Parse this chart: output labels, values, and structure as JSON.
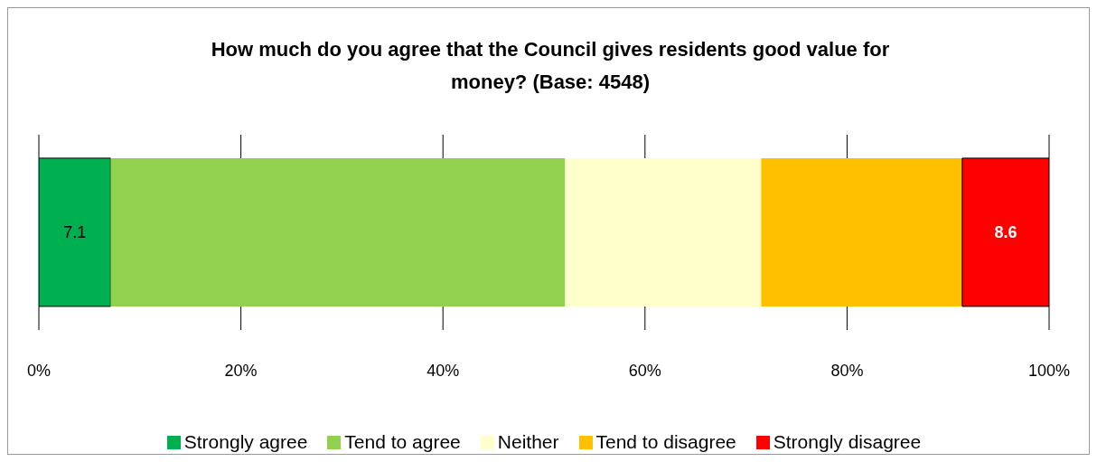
{
  "chart_data": {
    "type": "bar",
    "orientation": "horizontal",
    "stacked": true,
    "title": "How much do you agree that the Council gives residents good value for money? (Base: 4548)",
    "categories": [
      null
    ],
    "series": [
      {
        "name": "Strongly agree",
        "color": "#00b050",
        "values": [
          7.1
        ],
        "value_labels": [
          "7.1"
        ]
      },
      {
        "name": "Tend to agree",
        "color": "#92d050",
        "values": [
          45.0
        ],
        "value_labels": [
          null
        ]
      },
      {
        "name": "Neither",
        "color": "#ffffcc",
        "values": [
          19.4
        ],
        "value_labels": [
          null
        ]
      },
      {
        "name": "Tend to disagree",
        "color": "#ffc000",
        "values": [
          19.9
        ],
        "value_labels": [
          null
        ]
      },
      {
        "name": "Strongly disagree",
        "color": "#ff0000",
        "values": [
          8.6
        ],
        "value_labels": [
          "8.6"
        ]
      }
    ],
    "xlim": [
      0,
      100
    ],
    "xticks": [
      {
        "value": 0,
        "label": "0%"
      },
      {
        "value": 20,
        "label": "20%"
      },
      {
        "value": 40,
        "label": "40%"
      },
      {
        "value": 60,
        "label": "60%"
      },
      {
        "value": 80,
        "label": "80%"
      },
      {
        "value": 100,
        "label": "100%"
      }
    ],
    "grid": "x",
    "legend": "bottom"
  }
}
